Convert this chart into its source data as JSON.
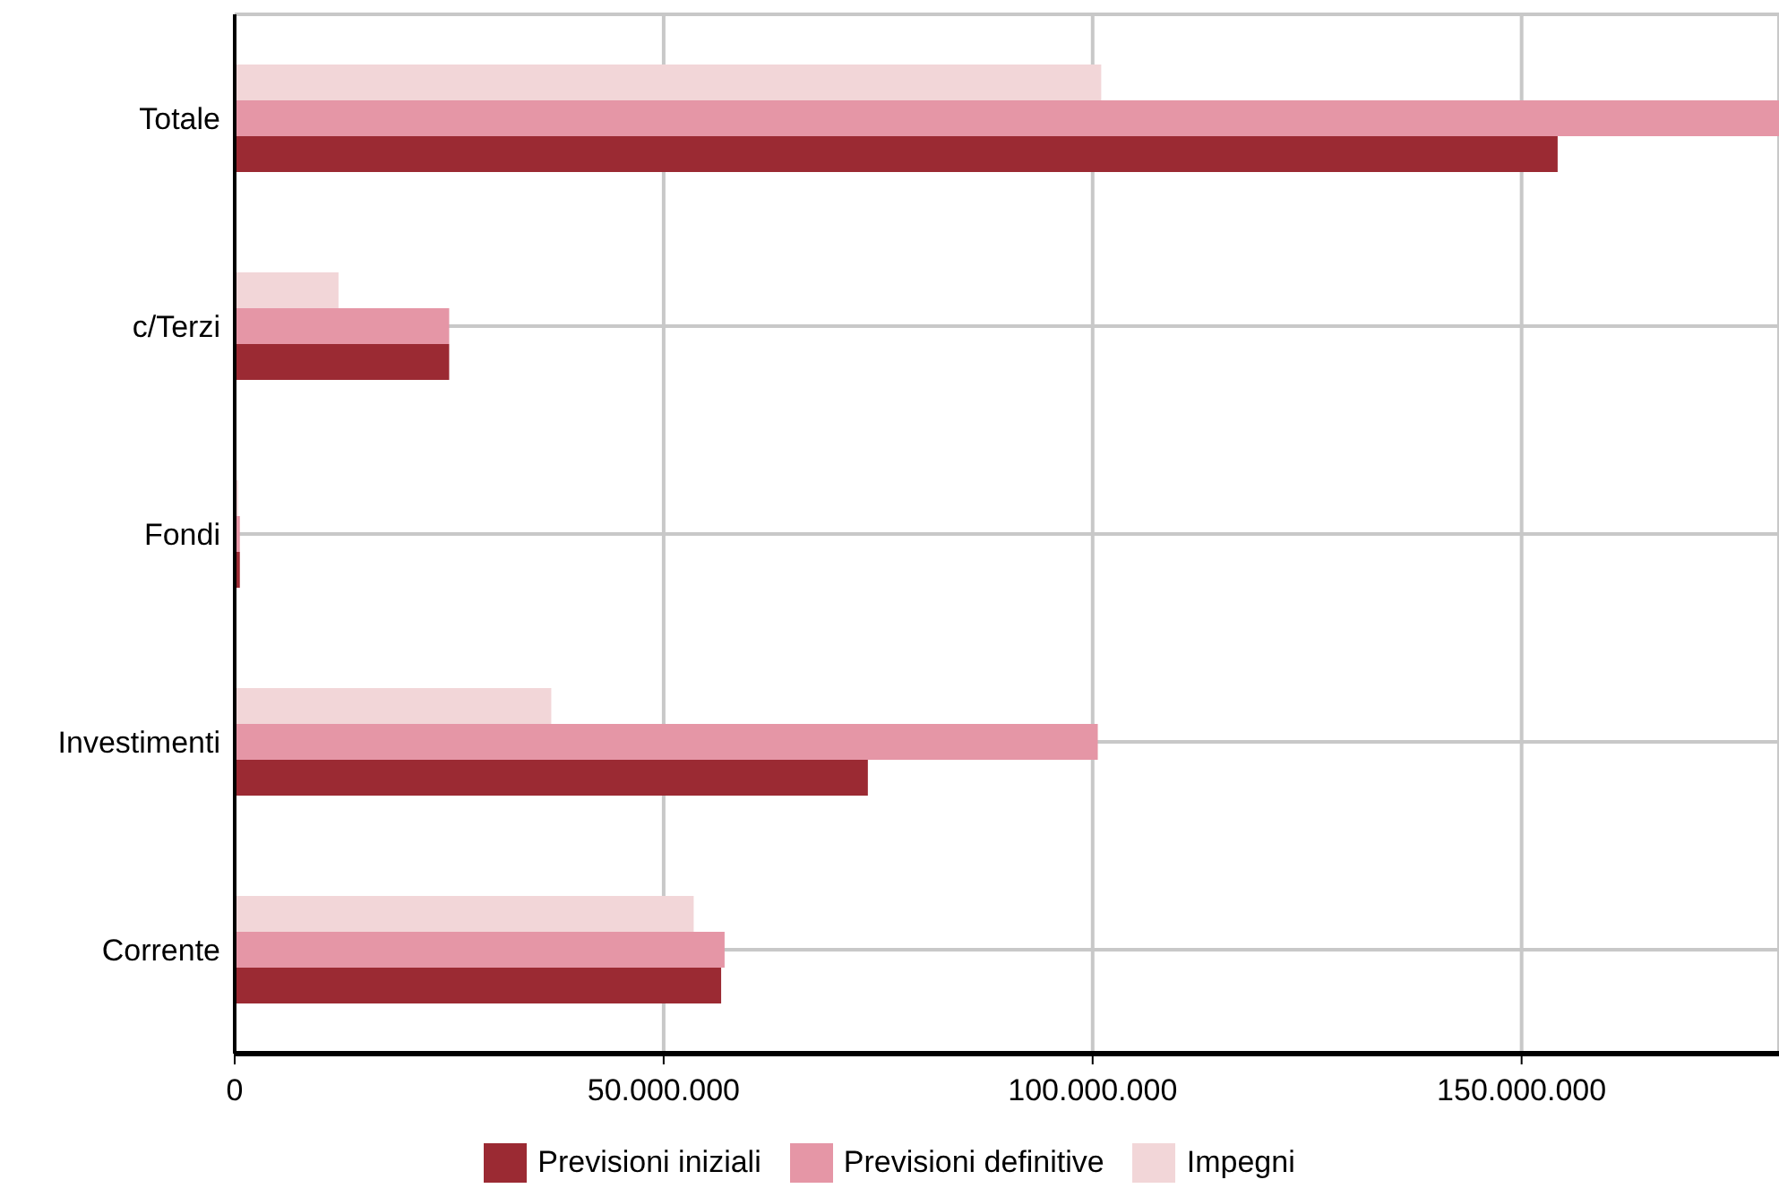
{
  "chart_data": {
    "type": "bar",
    "orientation": "horizontal",
    "categories": [
      "Totale",
      "c/Terzi",
      "Fondi",
      "Investimenti",
      "Corrente"
    ],
    "series": [
      {
        "name": "Previsioni iniziali",
        "color": "#9b2a33",
        "values": [
          154200000,
          25000000,
          600000,
          73800000,
          56700000
        ]
      },
      {
        "name": "Previsioni definitive",
        "color": "#e596a6",
        "values": [
          180000000,
          25000000,
          600000,
          100600000,
          57100000
        ]
      },
      {
        "name": "Impegni",
        "color": "#f2d6d8",
        "values": [
          101000000,
          12100000,
          400000,
          36900000,
          53500000
        ]
      }
    ],
    "xlim": [
      0,
      180000000
    ],
    "xticks": [
      0,
      {
        "value": 50000000,
        "label": "50.000.000"
      },
      {
        "value": 100000000,
        "label": "100.000.000"
      },
      {
        "value": 150000000,
        "label": "150.000.000"
      }
    ],
    "grid": true,
    "legend": "bottom"
  }
}
